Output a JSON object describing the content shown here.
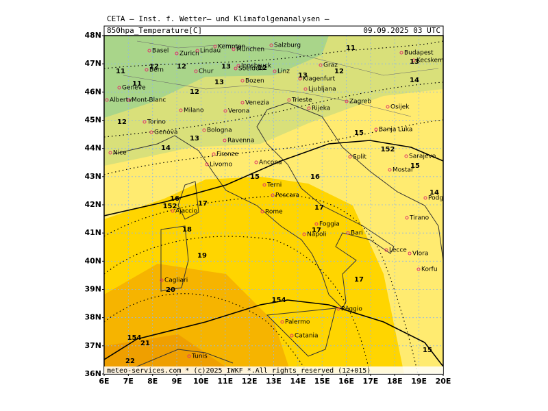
{
  "header": {
    "title": "CETA — Inst. f. Wetter— und Klimafolgenanalysen —",
    "field": "850hpa_Temperature[C]",
    "time": "09.09.2025 03 UTC"
  },
  "footer": "meteo-services.com * (c)2025 IWKF *.All rights reserved (12+015)",
  "lat_labels": [
    "48N",
    "47N",
    "46N",
    "45N",
    "44N",
    "43N",
    "42N",
    "41N",
    "40N",
    "39N",
    "38N",
    "37N",
    "36N"
  ],
  "lon_labels": [
    "6E",
    "7E",
    "8E",
    "9E",
    "10E",
    "11E",
    "12E",
    "13E",
    "14E",
    "15E",
    "16E",
    "17E",
    "18E",
    "19E",
    "20E"
  ],
  "cities": [
    "Basel",
    "Zurich",
    "Lindau",
    "Kempten",
    "München",
    "Salzburg",
    "Innsbruck",
    "Bern",
    "Chur",
    "Soelden",
    "Linz",
    "Graz",
    "Budapest",
    "Kecskemet",
    "Geneve",
    "Albertv.",
    "Mont-Blanc",
    "Bozen",
    "Klagenfurt",
    "Ljubljana",
    "Zagreb",
    "Milano",
    "Verona",
    "Venezia",
    "Trieste",
    "Rijeka",
    "Osijek",
    "Torino",
    "Banja Luka",
    "Genova",
    "Bologna",
    "Ravenna",
    "Nice",
    "Firenze",
    "Ancona",
    "Split",
    "Sarajevo",
    "Livorno",
    "Mostar",
    "Terni",
    "Pescara",
    "Podgorica",
    "Ajaccio",
    "Rome",
    "Tirano",
    "Foggia",
    "Bari",
    "Napoli",
    "Lecce",
    "Vlora",
    "Cagliari",
    "Korfu",
    "Reggio",
    "Palermo",
    "Catania",
    "Tunis"
  ],
  "contour_labels": [
    "11",
    "12",
    "12",
    "13",
    "12",
    "12",
    "11",
    "11",
    "13",
    "14",
    "13",
    "12",
    "13",
    "12",
    "14",
    "13",
    "15",
    "152",
    "15",
    "15",
    "16",
    "16",
    "152",
    "17",
    "17",
    "18",
    "17",
    "19",
    "17",
    "20",
    "154",
    "154",
    "21",
    "22",
    "15",
    "14"
  ]
}
